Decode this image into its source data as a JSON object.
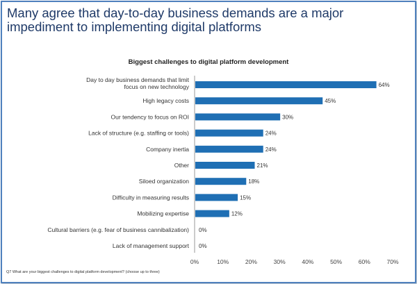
{
  "title": "Many agree that day-to-day business demands are a major impediment to implementing digital platforms",
  "footnote": "Q7  What are your biggest challenges to digital platform development? (choose up to three)",
  "chart_data": {
    "type": "bar",
    "orientation": "horizontal",
    "title": "Biggest challenges to digital platform development",
    "categories": [
      [
        "Day to day business demands that limit",
        "focus on new technology"
      ],
      [
        "High legacy costs"
      ],
      [
        "Our tendency to focus on ROI"
      ],
      [
        "Lack of structure (e.g. staffing or tools)"
      ],
      [
        "Company inertia"
      ],
      [
        "Other"
      ],
      [
        "Siloed organization"
      ],
      [
        "Difficulty in measuring results"
      ],
      [
        "Mobilizing expertise"
      ],
      [
        "Cultural barriers (e.g. fear of business cannibalization)"
      ],
      [
        "Lack of management support"
      ]
    ],
    "values": [
      64,
      45,
      30,
      24,
      24,
      21,
      18,
      15,
      12,
      0,
      0
    ],
    "data_labels": [
      "64%",
      "45%",
      "30%",
      "24%",
      "24%",
      "21%",
      "18%",
      "15%",
      "12%",
      "0%",
      "0%"
    ],
    "xlim": [
      0,
      70
    ],
    "x_ticks": [
      "0%",
      "10%",
      "20%",
      "30%",
      "40%",
      "50%",
      "60%",
      "70%"
    ],
    "grid": false,
    "legend": "none",
    "bar_color": "#1f6fb4"
  }
}
